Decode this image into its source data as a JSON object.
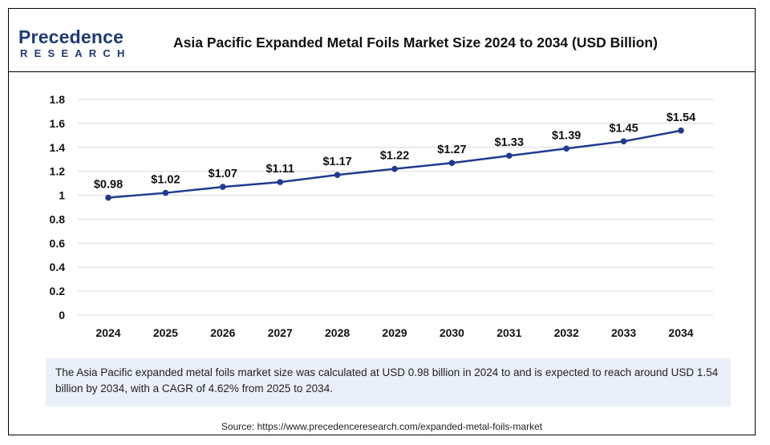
{
  "header": {
    "logo_main": "Precedence",
    "logo_sub": "RESEARCH",
    "title": "Asia Pacific Expanded Metal Foils Market Size 2024 to 2034 (USD Billion)"
  },
  "chart_data": {
    "type": "line",
    "title": "Asia Pacific Expanded Metal Foils Market Size 2024 to 2034 (USD Billion)",
    "xlabel": "",
    "ylabel": "",
    "categories": [
      "2024",
      "2025",
      "2026",
      "2027",
      "2028",
      "2029",
      "2030",
      "2031",
      "2032",
      "2033",
      "2034"
    ],
    "series": [
      {
        "values": [
          0.98,
          1.02,
          1.07,
          1.11,
          1.17,
          1.22,
          1.27,
          1.33,
          1.39,
          1.45,
          1.54
        ]
      }
    ],
    "data_labels": [
      "$0.98",
      "$1.02",
      "$1.07",
      "$1.11",
      "$1.17",
      "$1.22",
      "$1.27",
      "$1.33",
      "$1.39",
      "$1.45",
      "$1.54"
    ],
    "ylim": [
      0,
      1.8
    ],
    "yticks": [
      "0",
      "0.2",
      "0.4",
      "0.6",
      "0.8",
      "1",
      "1.2",
      "1.4",
      "1.6",
      "1.8"
    ],
    "grid": true,
    "line_color": "#1f3b8f"
  },
  "note": "The Asia Pacific expanded metal foils market size was calculated at USD 0.98 billion in 2024 to and is expected to reach around USD 1.54 billion by 2034, with a CAGR of 4.62% from 2025 to 2034.",
  "source": "Source: https://www.precedenceresearch.com/expanded-metal-foils-market"
}
